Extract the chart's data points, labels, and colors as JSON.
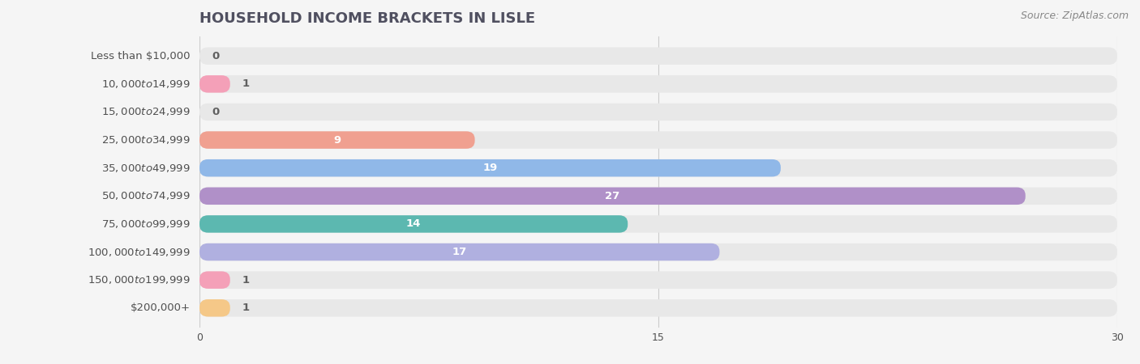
{
  "title": "HOUSEHOLD INCOME BRACKETS IN LISLE",
  "source": "Source: ZipAtlas.com",
  "categories": [
    "Less than $10,000",
    "$10,000 to $14,999",
    "$15,000 to $24,999",
    "$25,000 to $34,999",
    "$35,000 to $49,999",
    "$50,000 to $74,999",
    "$75,000 to $99,999",
    "$100,000 to $149,999",
    "$150,000 to $199,999",
    "$200,000+"
  ],
  "values": [
    0,
    1,
    0,
    9,
    19,
    27,
    14,
    17,
    1,
    1
  ],
  "bar_colors": [
    "#a8a8d8",
    "#f4a0b8",
    "#f5c888",
    "#f0a090",
    "#90b8e8",
    "#b090c8",
    "#5cb8b0",
    "#b0b0e0",
    "#f4a0b8",
    "#f5c888"
  ],
  "background_color": "#f5f5f5",
  "row_bg_color": "#e8e8e8",
  "xlim": [
    0,
    30
  ],
  "xticks": [
    0,
    15,
    30
  ],
  "title_color": "#505060",
  "label_color": "#505050",
  "value_color_inside": "#ffffff",
  "value_color_outside": "#606060",
  "title_fontsize": 13,
  "label_fontsize": 9.5,
  "value_fontsize": 9.5,
  "source_fontsize": 9
}
